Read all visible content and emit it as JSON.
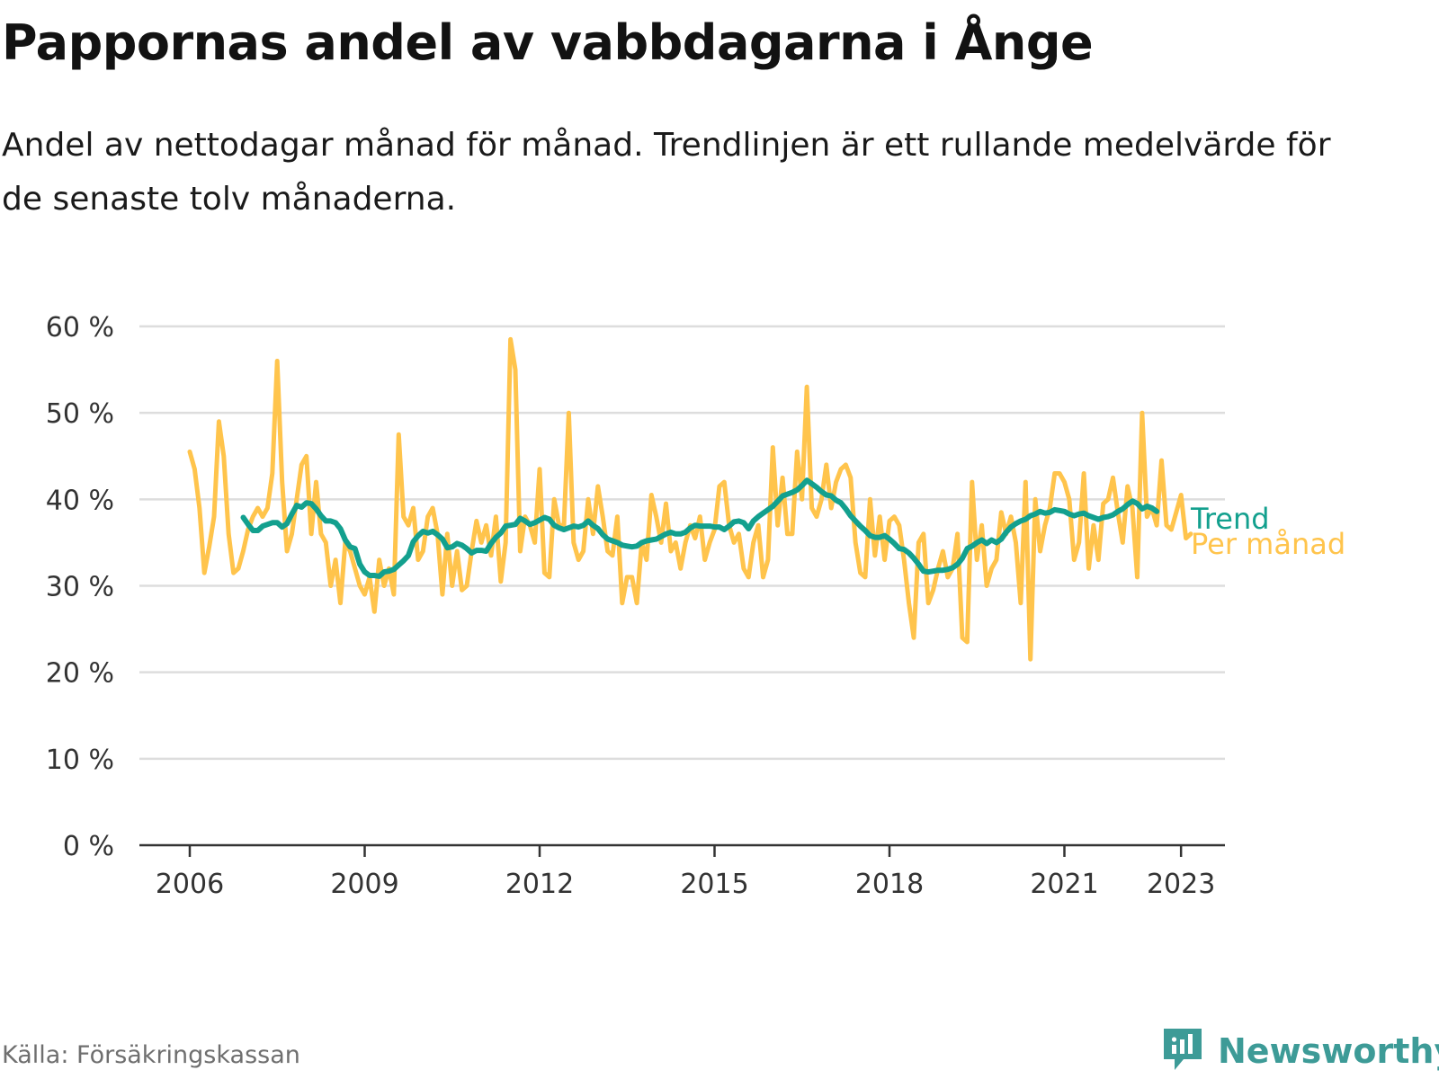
{
  "header": {
    "title": "Pappornas andel av vabbdagarna i Ånge",
    "subtitle": "Andel av nettodagar månad för månad. Trendlinjen är ett rullande medelvärde för de senaste tolv månaderna."
  },
  "footer": {
    "source": "Källa: Försäkringskassan",
    "brand": "Newsworthy"
  },
  "colors": {
    "monthly": "#ffc44c",
    "trend": "#13a08e",
    "grid": "#dddddd",
    "axis": "#333333",
    "brand": "#3d9b97"
  },
  "chart_data": {
    "type": "line",
    "title": "Pappornas andel av vabbdagarna i Ånge",
    "xlabel": "",
    "ylabel": "",
    "ylim": [
      0,
      60
    ],
    "xlim": [
      2005.5,
      2024.5
    ],
    "yticks": [
      0,
      10,
      20,
      30,
      40,
      50,
      60
    ],
    "ytick_labels": [
      "0 %",
      "10 %",
      "20 %",
      "30 %",
      "40 %",
      "50 %",
      "60 %"
    ],
    "xticks": [
      2006,
      2009,
      2012,
      2015,
      2018,
      2021,
      2023
    ],
    "xtick_labels": [
      "2006",
      "2009",
      "2012",
      "2015",
      "2018",
      "2021",
      "2023"
    ],
    "grid": true,
    "legend": "direct labels at line ends (right)",
    "x_start": 2006.0,
    "x_step": 0.0833333,
    "series": [
      {
        "name": "Per månad",
        "color": "#ffc44c",
        "values": [
          45.5,
          43.5,
          39.0,
          31.5,
          34.5,
          38.0,
          49.0,
          45.0,
          36.0,
          31.5,
          32.0,
          34.0,
          36.5,
          38.0,
          39.0,
          38.0,
          39.0,
          43.0,
          56.0,
          42.0,
          34.0,
          36.0,
          40.0,
          44.0,
          45.0,
          36.0,
          42.0,
          36.0,
          35.0,
          30.0,
          33.0,
          28.0,
          35.0,
          34.0,
          32.0,
          30.0,
          29.0,
          31.0,
          27.0,
          33.0,
          30.0,
          32.0,
          29.0,
          47.5,
          38.0,
          37.0,
          39.0,
          33.0,
          34.0,
          38.0,
          39.0,
          36.0,
          29.0,
          36.0,
          30.0,
          34.0,
          29.5,
          30.0,
          34.0,
          37.5,
          35.0,
          37.0,
          33.5,
          38.0,
          30.5,
          35.0,
          58.5,
          55.0,
          34.0,
          38.0,
          37.0,
          35.0,
          43.5,
          31.5,
          31.0,
          40.0,
          37.0,
          37.0,
          50.0,
          35.0,
          33.0,
          34.0,
          40.0,
          36.0,
          41.5,
          38.0,
          34.0,
          33.5,
          38.0,
          28.0,
          31.0,
          31.0,
          28.0,
          35.0,
          33.0,
          40.5,
          38.0,
          35.0,
          39.5,
          34.0,
          35.0,
          32.0,
          35.0,
          37.0,
          35.5,
          38.0,
          33.0,
          35.0,
          36.5,
          41.5,
          42.0,
          37.0,
          35.0,
          36.0,
          32.0,
          31.0,
          35.0,
          37.0,
          31.0,
          33.0,
          46.0,
          37.0,
          42.5,
          36.0,
          36.0,
          45.5,
          40.0,
          53.0,
          39.0,
          38.0,
          40.0,
          44.0,
          39.0,
          42.0,
          43.5,
          44.0,
          42.5,
          35.0,
          31.5,
          31.0,
          40.0,
          33.5,
          38.0,
          33.0,
          37.5,
          38.0,
          37.0,
          33.0,
          28.0,
          24.0,
          35.0,
          36.0,
          28.0,
          29.5,
          32.0,
          34.0,
          31.0,
          32.0,
          36.0,
          24.0,
          23.5,
          42.0,
          33.0,
          37.0,
          30.0,
          32.0,
          33.0,
          38.5,
          36.0,
          38.0,
          35.0,
          28.0,
          42.0,
          21.5,
          40.0,
          34.0,
          37.0,
          39.0,
          43.0,
          43.0,
          42.0,
          40.0,
          33.0,
          35.0,
          43.0,
          32.0,
          37.0,
          33.0,
          39.5,
          40.0,
          42.5,
          38.5,
          35.0,
          41.5,
          39.0,
          31.0,
          50.0,
          38.0,
          39.0,
          37.0,
          44.5,
          37.0,
          36.5,
          38.5,
          40.5,
          35.5,
          36.0
        ]
      },
      {
        "name": "Trend",
        "color": "#13a08e",
        "x_start": 2006.917,
        "values": [
          37.9,
          37.1,
          36.4,
          36.4,
          36.9,
          37.1,
          37.3,
          37.3,
          36.8,
          37.2,
          38.3,
          39.3,
          39.1,
          39.6,
          39.5,
          38.9,
          38.1,
          37.5,
          37.5,
          37.3,
          36.6,
          35.3,
          34.5,
          34.3,
          32.5,
          31.6,
          31.2,
          31.2,
          31.1,
          31.6,
          31.7,
          31.9,
          32.4,
          32.9,
          33.5,
          35.1,
          35.8,
          36.3,
          36.1,
          36.3,
          35.9,
          35.4,
          34.4,
          34.5,
          34.9,
          34.7,
          34.3,
          33.8,
          34.1,
          34.1,
          34.0,
          34.9,
          35.6,
          36.1,
          36.9,
          37.0,
          37.1,
          37.8,
          37.5,
          37.1,
          37.3,
          37.6,
          37.9,
          37.7,
          37.0,
          36.7,
          36.5,
          36.7,
          36.9,
          36.8,
          37.0,
          37.5,
          37.0,
          36.6,
          35.9,
          35.4,
          35.2,
          35.0,
          34.7,
          34.6,
          34.5,
          34.6,
          35.0,
          35.2,
          35.3,
          35.4,
          35.7,
          36.0,
          36.2,
          36.0,
          36.0,
          36.2,
          36.7,
          37.0,
          36.9,
          36.9,
          36.9,
          36.8,
          36.8,
          36.5,
          36.9,
          37.4,
          37.5,
          37.3,
          36.6,
          37.5,
          38.0,
          38.4,
          38.8,
          39.2,
          39.8,
          40.4,
          40.6,
          40.8,
          41.1,
          41.6,
          42.2,
          41.8,
          41.4,
          40.9,
          40.5,
          40.4,
          39.9,
          39.6,
          38.9,
          38.1,
          37.5,
          36.9,
          36.4,
          35.8,
          35.6,
          35.6,
          35.8,
          35.4,
          34.9,
          34.3,
          34.2,
          33.8,
          33.2,
          32.5,
          31.7,
          31.6,
          31.7,
          31.8,
          31.8,
          31.9,
          32.1,
          32.5,
          33.2,
          34.3,
          34.6,
          35.0,
          35.3,
          34.9,
          35.3,
          35.0,
          35.4,
          36.2,
          36.8,
          37.2,
          37.5,
          37.7,
          38.1,
          38.3,
          38.6,
          38.4,
          38.5,
          38.8,
          38.7,
          38.6,
          38.3,
          38.1,
          38.3,
          38.4,
          38.1,
          37.9,
          37.7,
          37.9,
          38.0,
          38.2,
          38.6,
          38.9,
          39.4,
          39.8,
          39.5,
          38.9,
          39.2,
          39.0,
          38.6
        ]
      }
    ],
    "annotations": [
      "Trend",
      "Per månad"
    ]
  }
}
